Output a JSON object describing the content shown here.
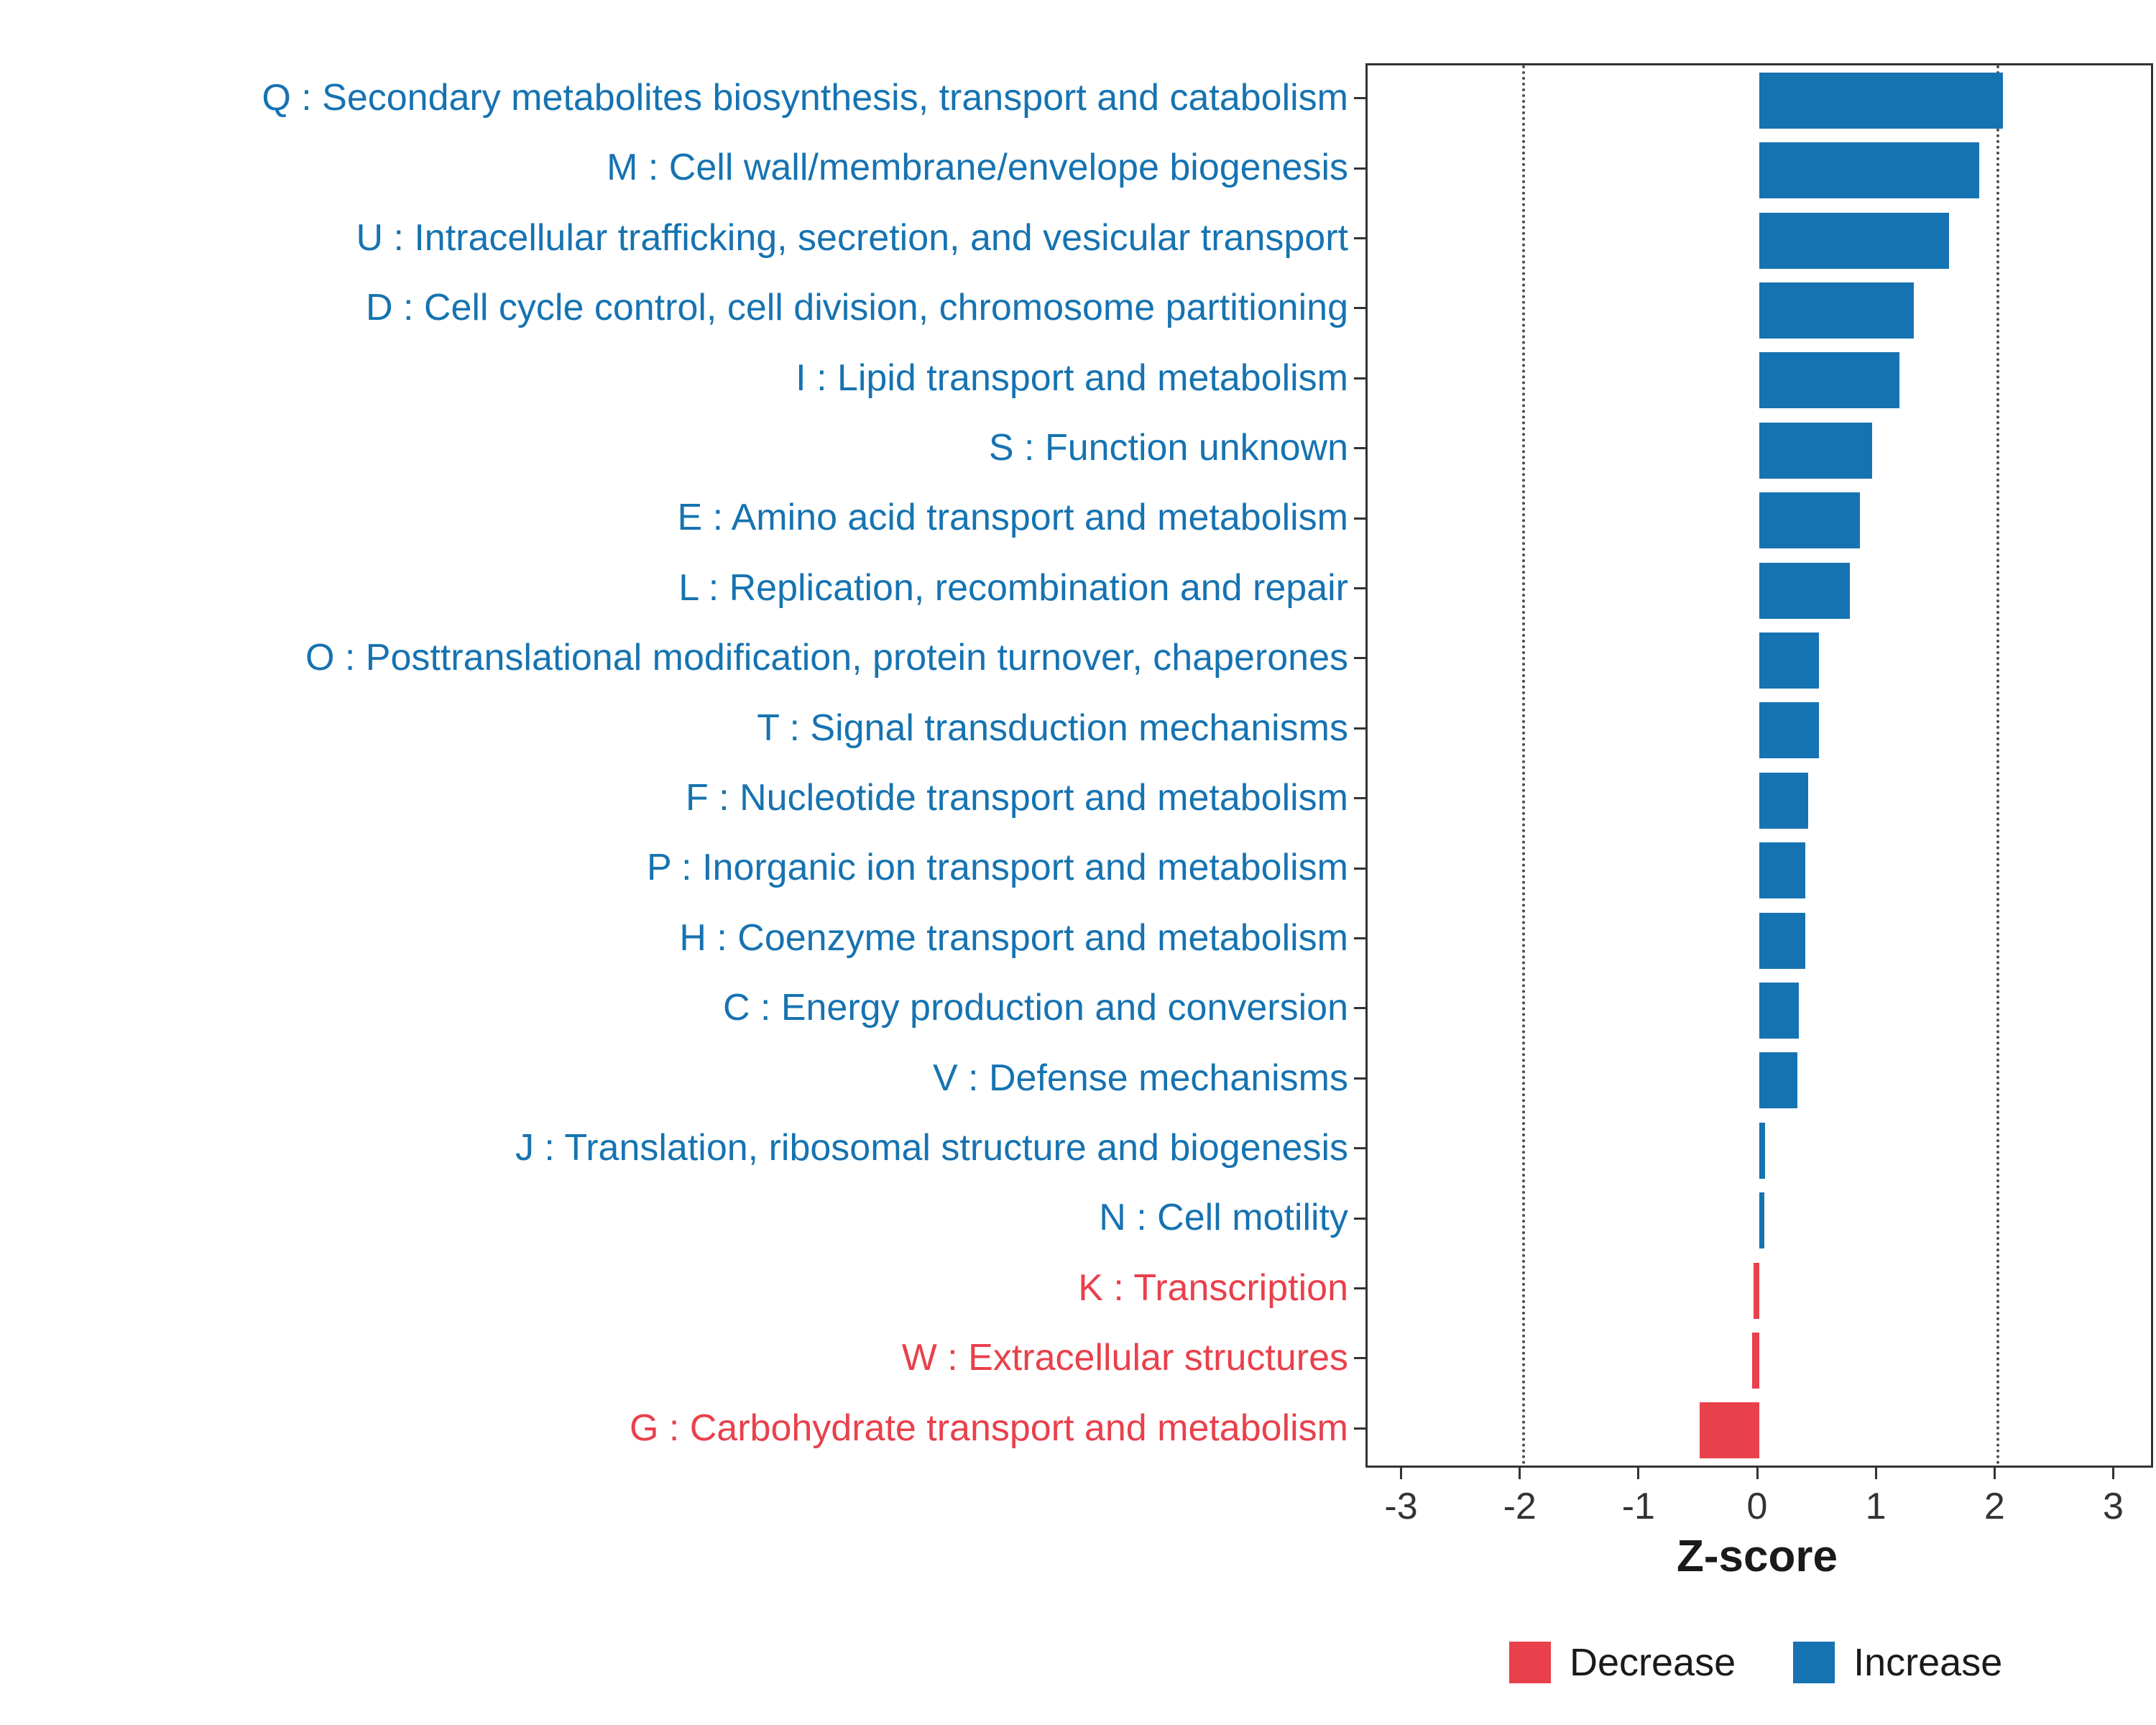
{
  "chart_data": {
    "type": "bar",
    "orientation": "horizontal",
    "title": "",
    "xlabel": "Z-score",
    "ylabel": "",
    "xlim": [
      -3.3,
      3.3
    ],
    "x_ticks": [
      -3,
      -2,
      -1,
      0,
      1,
      2,
      3
    ],
    "reference_lines": [
      -2,
      2
    ],
    "grid": false,
    "categories": [
      "Q : Secondary metabolites biosynthesis, transport and catabolism",
      "M : Cell wall/membrane/envelope biogenesis",
      "U : Intracellular trafficking, secretion, and vesicular transport",
      "D : Cell cycle control, cell division, chromosome partitioning",
      "I : Lipid transport and metabolism",
      "S : Function unknown",
      "E : Amino acid transport and metabolism",
      "L : Replication, recombination and repair",
      "O : Posttranslational modification, protein turnover, chaperones",
      "T : Signal transduction mechanisms",
      "F : Nucleotide transport and metabolism",
      "P : Inorganic ion transport and metabolism",
      "H : Coenzyme transport and metabolism",
      "C : Energy production and conversion",
      "V : Defense mechanisms",
      "J : Translation, ribosomal structure and biogenesis",
      "N : Cell motility",
      "K : Transcription",
      "W : Extracellular structures",
      "G : Carbohydrate transport and metabolism"
    ],
    "values": [
      2.05,
      1.85,
      1.6,
      1.3,
      1.18,
      0.95,
      0.85,
      0.76,
      0.5,
      0.5,
      0.41,
      0.39,
      0.39,
      0.33,
      0.32,
      0.05,
      0.04,
      -0.05,
      -0.06,
      -0.5
    ],
    "colors": {
      "increase": "#1673B1",
      "decrease": "#E8414C"
    },
    "legend_position": "bottom-right",
    "legend": [
      {
        "label": "Decrease",
        "color": "#E8414C"
      },
      {
        "label": "Increase",
        "color": "#1673B1"
      }
    ]
  }
}
